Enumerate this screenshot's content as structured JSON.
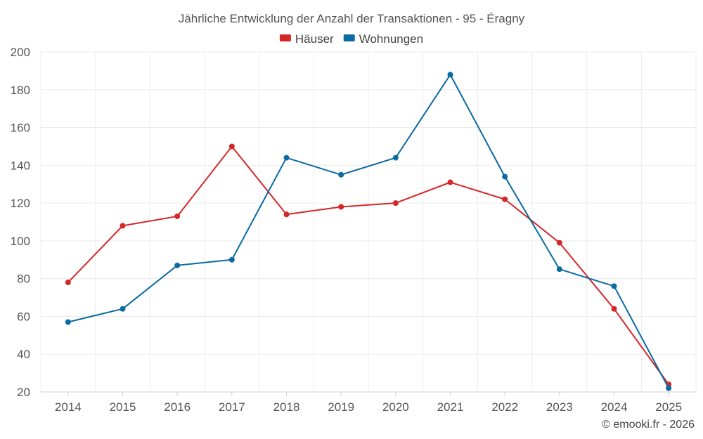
{
  "chart_data": {
    "type": "line",
    "title": "Jährliche Entwicklung der Anzahl der Transaktionen - 95 - Éragny",
    "xlabel": "",
    "ylabel": "",
    "categories": [
      "2014",
      "2015",
      "2016",
      "2017",
      "2018",
      "2019",
      "2020",
      "2021",
      "2022",
      "2023",
      "2024",
      "2025"
    ],
    "ylim": [
      20,
      200
    ],
    "yticks": [
      20,
      40,
      60,
      80,
      100,
      120,
      140,
      160,
      180,
      200
    ],
    "grid": true,
    "legend_position": "top-center",
    "series": [
      {
        "name": "Häuser",
        "color": "#d62728",
        "values": [
          78,
          108,
          113,
          150,
          114,
          118,
          120,
          131,
          122,
          99,
          64,
          24
        ]
      },
      {
        "name": "Wohnungen",
        "color": "#0a6aa1",
        "values": [
          57,
          64,
          87,
          90,
          144,
          135,
          144,
          188,
          134,
          85,
          76,
          22
        ]
      }
    ]
  },
  "credit": "© emooki.fr - 2026"
}
